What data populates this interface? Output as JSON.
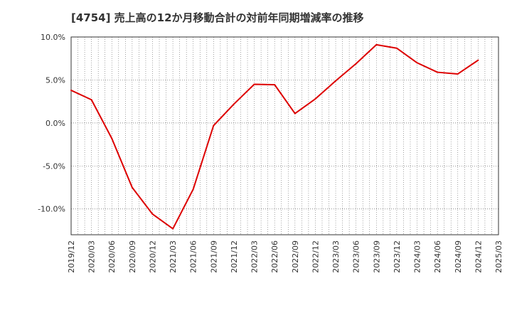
{
  "chart_data": {
    "type": "line",
    "title": "[4754]  売上高の12か月移動合計の対前年同期増減率の推移",
    "xlabel": "",
    "ylabel": "",
    "ylim": [
      -13,
      10
    ],
    "y_ticks": [
      {
        "value": 10,
        "label": "10.0%"
      },
      {
        "value": 5,
        "label": "5.0%"
      },
      {
        "value": 0,
        "label": "0.0%"
      },
      {
        "value": -5,
        "label": "-5.0%"
      },
      {
        "value": -10,
        "label": "-10.0%"
      }
    ],
    "categories": [
      "2019/12",
      "2020/03",
      "2020/06",
      "2020/09",
      "2020/12",
      "2021/03",
      "2021/06",
      "2021/09",
      "2021/12",
      "2022/03",
      "2022/06",
      "2022/09",
      "2022/12",
      "2023/03",
      "2023/06",
      "2023/09",
      "2023/12",
      "2024/03",
      "2024/06",
      "2024/09",
      "2024/12",
      "2025/03"
    ],
    "series": [
      {
        "name": "増減率",
        "color": "#dd0000",
        "values": [
          3.8,
          2.7,
          -1.8,
          -7.5,
          -10.6,
          -12.3,
          -7.7,
          -0.3,
          2.2,
          4.5,
          4.45,
          1.1,
          2.8,
          4.9,
          6.9,
          9.1,
          8.7,
          7.0,
          5.9,
          5.7,
          7.3,
          null
        ]
      }
    ],
    "grid": true,
    "legend": "none"
  }
}
